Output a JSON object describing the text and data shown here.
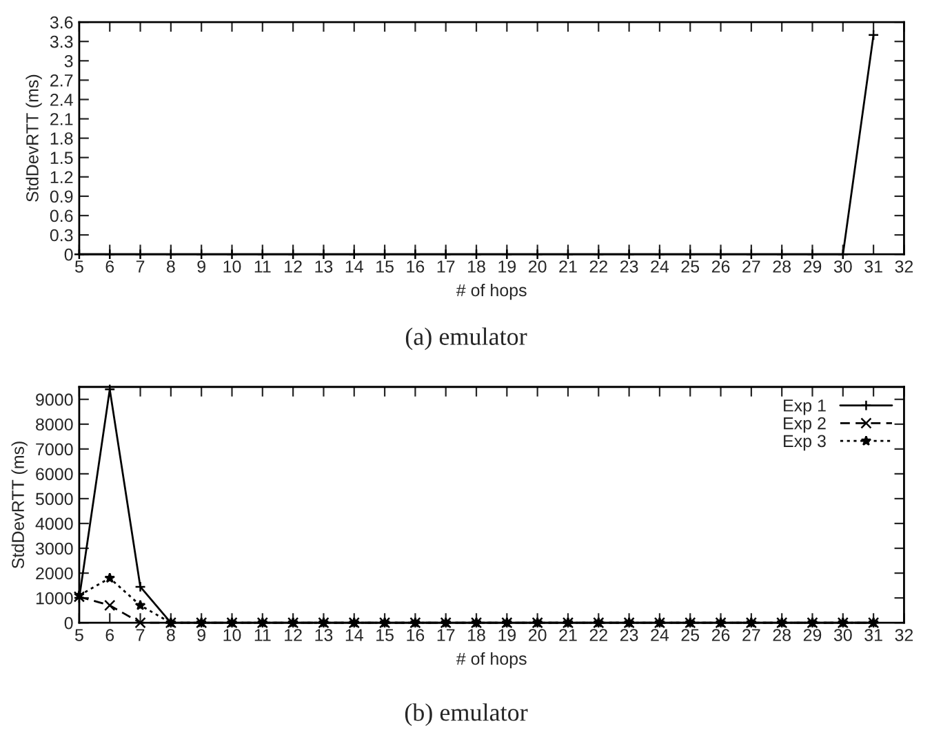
{
  "chart_data": [
    {
      "type": "line",
      "xlabel": "# of hops",
      "ylabel": "StdDevRTT (ms)",
      "xlim": [
        5,
        32
      ],
      "xticks": [
        5,
        6,
        7,
        8,
        9,
        10,
        11,
        12,
        13,
        14,
        15,
        16,
        17,
        18,
        19,
        20,
        21,
        22,
        23,
        24,
        25,
        26,
        27,
        28,
        29,
        30,
        31,
        32
      ],
      "ylim": [
        0,
        3.6
      ],
      "yticks": [
        0,
        0.3,
        0.6,
        0.9,
        1.2,
        1.5,
        1.8,
        2.1,
        2.4,
        2.7,
        3,
        3.3,
        3.6
      ],
      "marker": "cross",
      "legend": false,
      "grid": false,
      "annotations": [
        "(a) emulator"
      ],
      "series": [
        {
          "color": "#000000",
          "line_style": "solid",
          "x": [
            5,
            6,
            7,
            8,
            9,
            10,
            11,
            12,
            13,
            14,
            15,
            16,
            17,
            18,
            19,
            20,
            21,
            22,
            23,
            24,
            25,
            26,
            27,
            28,
            29,
            30,
            31
          ],
          "values": [
            0,
            0,
            0,
            0,
            0,
            0,
            0,
            0,
            0,
            0,
            0,
            0,
            0,
            0,
            0,
            0,
            0,
            0,
            0,
            0,
            0,
            0,
            0,
            0,
            0,
            0,
            3.4
          ]
        }
      ]
    },
    {
      "type": "line",
      "xlabel": "# of hops",
      "ylabel": "StdDevRTT (ms)",
      "xlim": [
        5,
        32
      ],
      "xticks": [
        5,
        6,
        7,
        8,
        9,
        10,
        11,
        12,
        13,
        14,
        15,
        16,
        17,
        18,
        19,
        20,
        21,
        22,
        23,
        24,
        25,
        26,
        27,
        28,
        29,
        30,
        31,
        32
      ],
      "ylim": [
        0,
        9500
      ],
      "yticks": [
        0,
        1000,
        2000,
        3000,
        4000,
        5000,
        6000,
        7000,
        8000,
        9000
      ],
      "legend": "top right",
      "grid": false,
      "annotations": [
        "(b) emulator"
      ],
      "series": [
        {
          "name": "Exp 1",
          "color": "#000000",
          "line_style": "solid",
          "marker": "cross",
          "x": [
            5,
            6,
            7,
            8,
            9,
            10,
            11,
            12,
            13,
            14,
            15,
            16,
            17,
            18,
            19,
            20,
            21,
            22,
            23,
            24,
            25,
            26,
            27,
            28,
            29,
            30,
            31
          ],
          "values": [
            1000,
            9400,
            1450,
            0,
            0,
            0,
            0,
            0,
            0,
            0,
            0,
            0,
            0,
            0,
            0,
            0,
            0,
            0,
            0,
            0,
            0,
            0,
            0,
            0,
            0,
            0,
            0
          ]
        },
        {
          "name": "Exp 2",
          "color": "#000000",
          "line_style": "dashed",
          "marker": "x",
          "x": [
            5,
            6,
            7,
            8,
            9,
            10,
            11,
            12,
            13,
            14,
            15,
            16,
            17,
            18,
            19,
            20,
            21,
            22,
            23,
            24,
            25,
            26,
            27,
            28,
            29,
            30,
            31
          ],
          "values": [
            1050,
            700,
            0,
            0,
            0,
            0,
            0,
            0,
            0,
            0,
            0,
            0,
            0,
            0,
            0,
            0,
            0,
            0,
            0,
            0,
            0,
            0,
            0,
            0,
            0,
            0,
            0
          ]
        },
        {
          "name": "Exp 3",
          "color": "#000000",
          "line_style": "dotted",
          "marker": "star",
          "x": [
            5,
            6,
            7,
            8,
            9,
            10,
            11,
            12,
            13,
            14,
            15,
            16,
            17,
            18,
            19,
            20,
            21,
            22,
            23,
            24,
            25,
            26,
            27,
            28,
            29,
            30,
            31
          ],
          "values": [
            1100,
            1800,
            700,
            0,
            0,
            0,
            0,
            0,
            0,
            0,
            0,
            0,
            0,
            0,
            0,
            0,
            0,
            0,
            0,
            0,
            0,
            0,
            0,
            0,
            0,
            0,
            0
          ]
        }
      ]
    }
  ]
}
